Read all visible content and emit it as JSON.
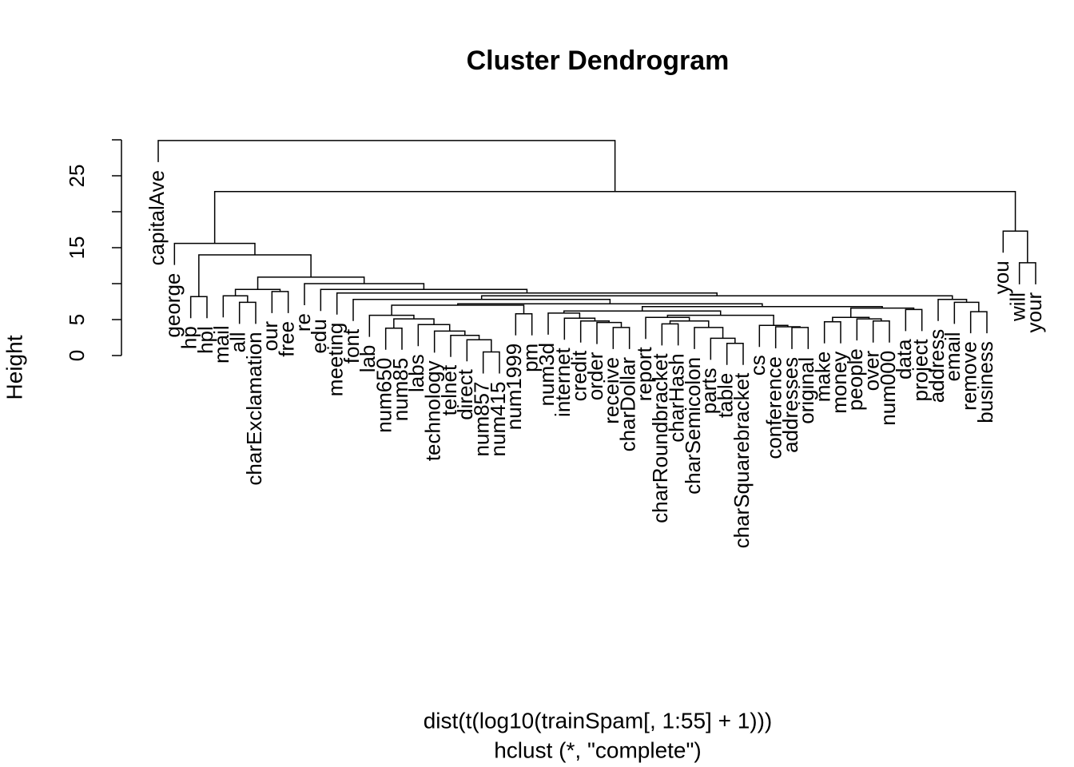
{
  "chart_data": {
    "type": "dendrogram",
    "title": "Cluster Dendrogram",
    "xlabel": "dist(t(log10(trainSpam[, 1:55] + 1)))",
    "subtitle": "hclust (*, \"complete\")",
    "ylabel": "Height",
    "labels": [
      "capitalAve",
      "george",
      "hp",
      "hpl",
      "mail",
      "all",
      "charExclamation",
      "our",
      "free",
      "re",
      "edu",
      "meeting",
      "font",
      "lab",
      "num650",
      "num85",
      "labs",
      "technology",
      "telnet",
      "direct",
      "num857",
      "num415",
      "num1999",
      "pm",
      "num3d",
      "internet",
      "credit",
      "order",
      "receive",
      "charDollar",
      "report",
      "charRoundbracket",
      "charHash",
      "charSemicolon",
      "parts",
      "table",
      "charSquarebracket",
      "cs",
      "conference",
      "addresses",
      "original",
      "make",
      "money",
      "people",
      "over",
      "num000",
      "data",
      "project",
      "address",
      "email",
      "remove",
      "business",
      "you",
      "will",
      "your"
    ],
    "merge": [
      [
        -21,
        -22
      ],
      [
        -20,
        1
      ],
      [
        -19,
        2
      ],
      [
        -18,
        3
      ],
      [
        -17,
        4
      ],
      [
        -15,
        -16
      ],
      [
        6,
        5
      ],
      [
        -14,
        7
      ],
      [
        -23,
        -24
      ],
      [
        8,
        9
      ],
      [
        -29,
        -30
      ],
      [
        -28,
        11
      ],
      [
        -27,
        12
      ],
      [
        -26,
        13
      ],
      [
        -25,
        14
      ],
      [
        -36,
        -37
      ],
      [
        -35,
        16
      ],
      [
        -34,
        17
      ],
      [
        -32,
        -33
      ],
      [
        19,
        18
      ],
      [
        -31,
        20
      ],
      [
        -40,
        -41
      ],
      [
        -39,
        22
      ],
      [
        -38,
        23
      ],
      [
        21,
        24
      ],
      [
        15,
        25
      ],
      [
        -42,
        -43
      ],
      [
        -45,
        -46
      ],
      [
        -44,
        28
      ],
      [
        27,
        29
      ],
      [
        -47,
        -48
      ],
      [
        30,
        31
      ],
      [
        26,
        32
      ],
      [
        10,
        33
      ],
      [
        -13,
        34
      ],
      [
        -51,
        -52
      ],
      [
        -50,
        36
      ],
      [
        -49,
        37
      ],
      [
        35,
        38
      ],
      [
        -12,
        39
      ],
      [
        -11,
        40
      ],
      [
        -10,
        41
      ],
      [
        -6,
        -7
      ],
      [
        -5,
        43
      ],
      [
        -8,
        -9
      ],
      [
        44,
        45
      ],
      [
        46,
        42
      ],
      [
        -3,
        -4
      ],
      [
        48,
        47
      ],
      [
        -2,
        49
      ],
      [
        -54,
        -55
      ],
      [
        -53,
        51
      ],
      [
        50,
        52
      ],
      [
        -1,
        53
      ]
    ],
    "height": [
      0.5,
      2.2,
      2.8,
      3.4,
      4.3,
      3.8,
      5.1,
      5.6,
      5.8,
      7.0,
      3.9,
      4.6,
      4.8,
      5.2,
      5.9,
      1.7,
      2.4,
      3.9,
      4.4,
      4.8,
      5.3,
      3.9,
      4.0,
      4.2,
      5.6,
      6.2,
      4.7,
      4.8,
      5.1,
      5.3,
      6.4,
      6.6,
      6.8,
      7.2,
      7.8,
      6.1,
      7.4,
      7.8,
      8.3,
      8.7,
      9.2,
      10.0,
      7.4,
      8.3,
      8.9,
      9.2,
      10.9,
      8.2,
      14.0,
      15.6,
      12.9,
      17.3,
      22.8,
      29.9
    ],
    "hang": 0.1,
    "color": "#000000",
    "ylim": [
      0,
      30
    ],
    "yticks": [
      0,
      5,
      15,
      25
    ],
    "yminor_ticks": [
      10,
      20,
      30
    ]
  }
}
